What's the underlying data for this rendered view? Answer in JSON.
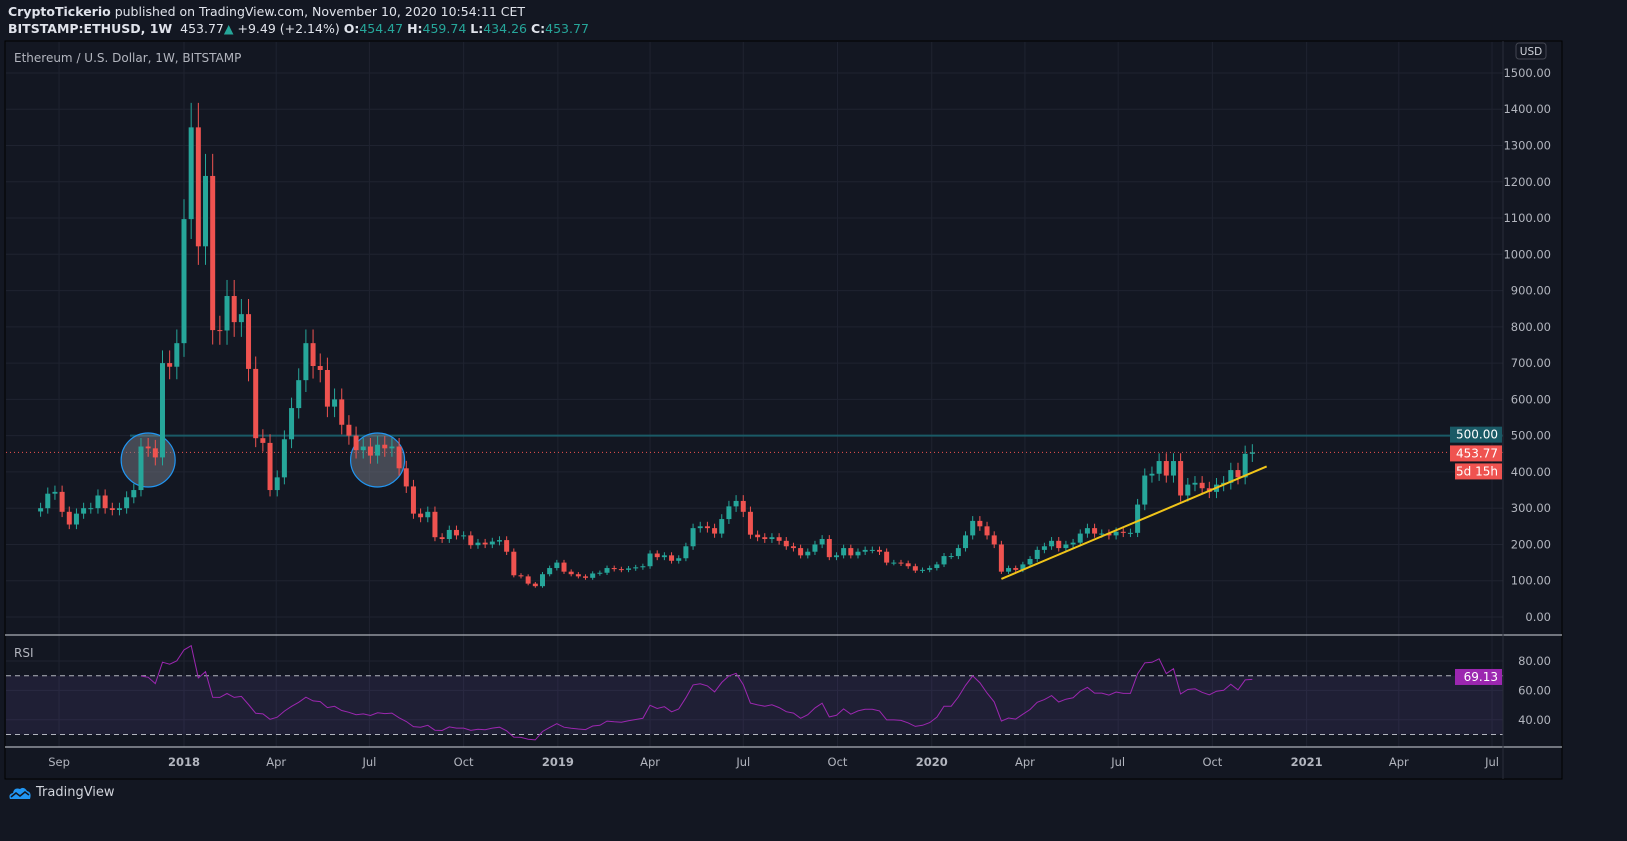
{
  "header": {
    "author": "CryptoTickerio",
    "published": "published on TradingView.com, November 10, 2020 10:54:11 CET",
    "symbol": "BITSTAMP:ETHUSD, 1W",
    "last": "453.77",
    "change": "+9.49 (+2.14%)",
    "o_label": "O:",
    "o": "454.47",
    "h_label": "H:",
    "h": "459.74",
    "l_label": "L:",
    "l": "434.26",
    "c_label": "C:",
    "c": "453.77"
  },
  "chart_title": "Ethereum / U.S. Dollar, 1W, BITSTAMP",
  "currency": "USD",
  "colors": {
    "up": "#26a69a",
    "down": "#ef5350",
    "rsi": "#9c27b0",
    "trendline": "#f0c419",
    "level": "#1a5a66",
    "background": "#131722"
  },
  "price_labels": {
    "level": "500.00",
    "last": "453.77",
    "countdown": "5d 15h"
  },
  "rsi": {
    "label": "RSI",
    "last": "69.13"
  },
  "brand": "TradingView",
  "chart_data": {
    "type": "candlestick",
    "interval": "1W",
    "start_week": "2017-08-14",
    "closes": [
      300,
      340,
      345,
      290,
      255,
      285,
      300,
      300,
      335,
      300,
      295,
      300,
      330,
      350,
      470,
      465,
      440,
      700,
      690,
      755,
      1097,
      1350,
      1022,
      1216,
      791,
      790,
      885,
      813,
      835,
      684,
      493,
      480,
      350,
      385,
      490,
      576,
      653,
      755,
      692,
      681,
      580,
      600,
      530,
      500,
      460,
      470,
      445,
      475,
      465,
      470,
      410,
      360,
      285,
      275,
      290,
      220,
      215,
      240,
      225,
      225,
      198,
      205,
      200,
      208,
      212,
      180,
      115,
      112,
      92,
      85,
      118,
      135,
      150,
      125,
      118,
      112,
      108,
      120,
      122,
      135,
      132,
      130,
      134,
      137,
      140,
      175,
      165,
      170,
      155,
      162,
      195,
      245,
      250,
      245,
      230,
      270,
      305,
      320,
      290,
      227,
      220,
      215,
      220,
      210,
      195,
      190,
      170,
      180,
      200,
      215,
      165,
      170,
      190,
      170,
      180,
      185,
      185,
      180,
      150,
      150,
      148,
      140,
      128,
      130,
      135,
      145,
      168,
      168,
      190,
      225,
      265,
      250,
      225,
      200,
      125,
      135,
      130,
      145,
      160,
      185,
      195,
      210,
      190,
      200,
      205,
      230,
      245,
      230,
      230,
      225,
      235,
      232,
      232,
      310,
      390,
      395,
      430,
      390,
      430,
      335,
      365,
      370,
      355,
      345,
      365,
      370,
      405,
      385,
      450,
      453.77
    ],
    "y_ticks": [
      "0.00",
      "100.00",
      "200.00",
      "300.00",
      "400.00",
      "500.00",
      "600.00",
      "700.00",
      "800.00",
      "900.00",
      "1000.00",
      "1100.00",
      "1200.00",
      "1300.00",
      "1400.00",
      "1500.00"
    ],
    "ylim": [
      -60,
      1560
    ],
    "x_ticks": [
      {
        "label": "Sep",
        "date": "2017-09-01"
      },
      {
        "label": "2018",
        "date": "2018-01-01"
      },
      {
        "label": "Apr",
        "date": "2018-04-01"
      },
      {
        "label": "Jul",
        "date": "2018-07-01"
      },
      {
        "label": "Oct",
        "date": "2018-10-01"
      },
      {
        "label": "2019",
        "date": "2019-01-01"
      },
      {
        "label": "Apr",
        "date": "2019-04-01"
      },
      {
        "label": "Jul",
        "date": "2019-07-01"
      },
      {
        "label": "Oct",
        "date": "2019-10-01"
      },
      {
        "label": "2020",
        "date": "2020-01-01"
      },
      {
        "label": "Apr",
        "date": "2020-04-01"
      },
      {
        "label": "Jul",
        "date": "2020-07-01"
      },
      {
        "label": "Oct",
        "date": "2020-10-01"
      },
      {
        "label": "2021",
        "date": "2021-01-01"
      },
      {
        "label": "Apr",
        "date": "2021-04-01"
      },
      {
        "label": "Jul",
        "date": "2021-07-01"
      }
    ],
    "horizontal_level": 500,
    "last_price": 453.77,
    "trendline": {
      "from": {
        "date": "2020-03-09",
        "price": 105
      },
      "to": {
        "date": "2020-11-23",
        "price": 415
      }
    },
    "circles": [
      {
        "date": "2017-11-27",
        "price": 455
      },
      {
        "date": "2018-07-09",
        "price": 455
      }
    ],
    "rsi_period": 14,
    "rsi_ticks": [
      "40.00",
      "60.00",
      "80.00"
    ],
    "rsi_bands": [
      30,
      70
    ]
  }
}
